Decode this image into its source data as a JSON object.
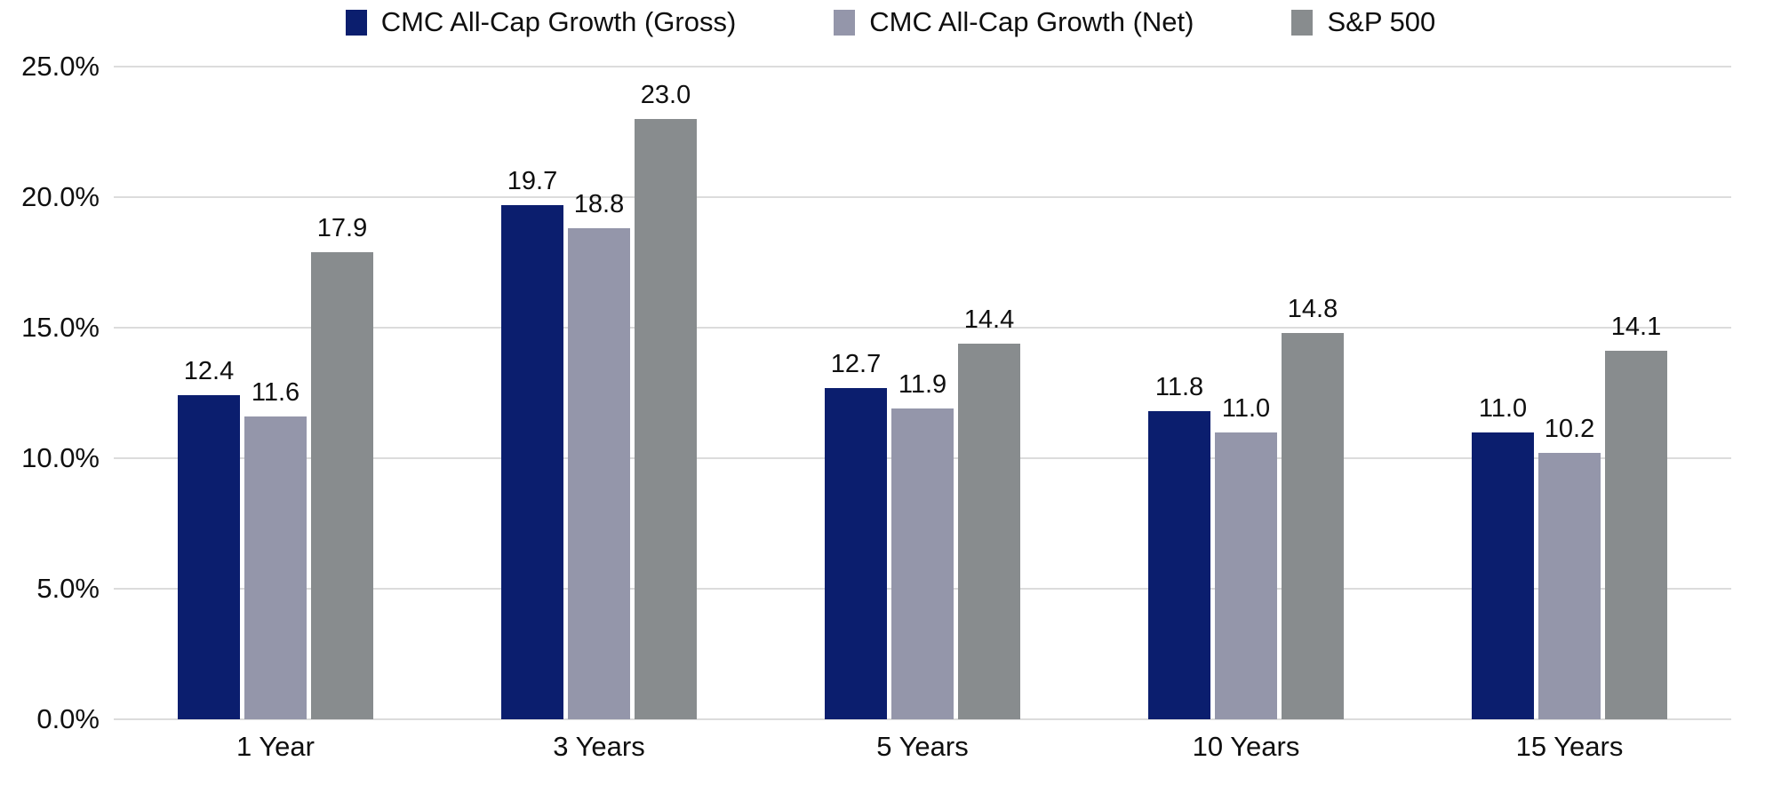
{
  "legend": [
    {
      "label": "CMC All-Cap Growth (Gross)",
      "color": "#0b1e6e"
    },
    {
      "label": "CMC All-Cap Growth (Net)",
      "color": "#9496aa"
    },
    {
      "label": "S&P 500",
      "color": "#888c8e"
    }
  ],
  "chart_data": {
    "type": "bar",
    "title": "",
    "xlabel": "",
    "ylabel": "",
    "categories": [
      "1 Year",
      "3 Years",
      "5 Years",
      "10 Years",
      "15 Years"
    ],
    "series": [
      {
        "name": "CMC All-Cap Growth (Gross)",
        "color": "#0b1e6e",
        "values": [
          12.4,
          19.7,
          12.7,
          11.8,
          11.0
        ]
      },
      {
        "name": "CMC All-Cap Growth (Net)",
        "color": "#9496aa",
        "values": [
          11.6,
          18.8,
          11.9,
          11.0,
          10.2
        ]
      },
      {
        "name": "S&P 500",
        "color": "#888c8e",
        "values": [
          17.9,
          23.0,
          14.4,
          14.8,
          14.1
        ]
      }
    ],
    "ylim": [
      0,
      25
    ],
    "y_ticks": [
      "0.0%",
      "5.0%",
      "10.0%",
      "15.0%",
      "20.0%",
      "25.0%"
    ],
    "grid": true,
    "legend_position": "top",
    "value_label_decimals": 1
  },
  "colors": {
    "background": "#ffffff",
    "gridline": "#dcdcdc",
    "text": "#0f0f0f"
  }
}
